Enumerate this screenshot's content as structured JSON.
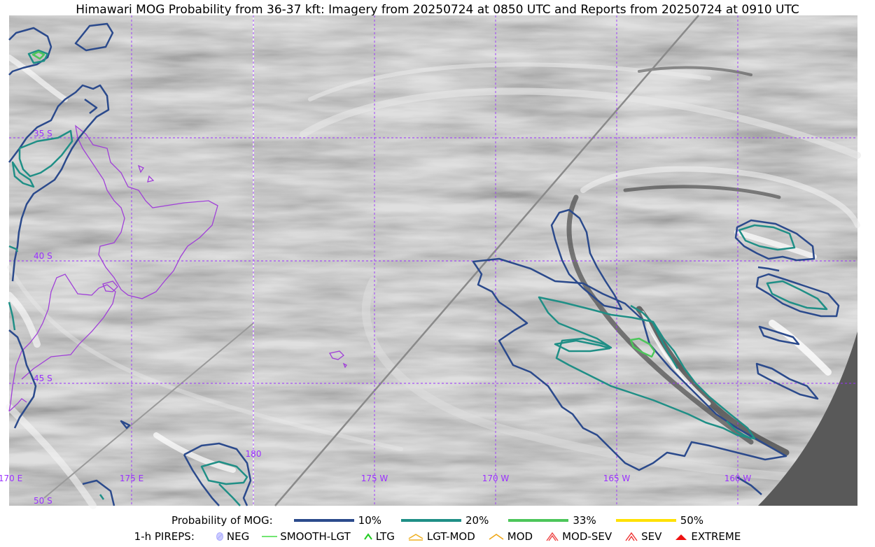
{
  "title": "Himawari MOG Probability from 36-37 kft: Imagery from 20250724 at 0850 UTC and Reports from 20250724 at 0910 UTC",
  "map": {
    "lat_labels": [
      "35 S",
      "40 S",
      "45 S",
      "50 S"
    ],
    "lon_labels": [
      "170 E",
      "175 E",
      "180",
      "175 W",
      "170 W",
      "165 W",
      "160 W"
    ],
    "colors": {
      "grid": "#9b30ff",
      "coast": "#a040d8",
      "p10": "#2b4a8c",
      "p20": "#1f8f86",
      "p33": "#4cc65a",
      "p50": "#ffe100",
      "nodata": "#595959"
    }
  },
  "legend": {
    "probability_heading": "Probability of MOG:",
    "probability_items": [
      {
        "label": "10%",
        "color": "#2b4a8c"
      },
      {
        "label": "20%",
        "color": "#1f8f86"
      },
      {
        "label": "33%",
        "color": "#4cc65a"
      },
      {
        "label": "50%",
        "color": "#ffe100"
      }
    ],
    "pirep_heading": "1-h PIREPS:",
    "pirep_items": [
      {
        "label": "NEG",
        "icon": "neg-circle-icon",
        "color": "#aaaaff"
      },
      {
        "label": "SMOOTH-LGT",
        "icon": "smooth-light-line-icon",
        "color": "#44dd44"
      },
      {
        "label": "LTG",
        "icon": "light-chevron-icon",
        "color": "#22cc22"
      },
      {
        "label": "LGT-MOD",
        "icon": "light-moderate-chevron-icon",
        "color": "#f0b020"
      },
      {
        "label": "MOD",
        "icon": "moderate-chevron-icon",
        "color": "#f0a818"
      },
      {
        "label": "MOD-SEV",
        "icon": "moderate-severe-chevron-icon",
        "color": "#ee4444"
      },
      {
        "label": "SEV",
        "icon": "severe-chevron-icon",
        "color": "#ee3333"
      },
      {
        "label": "EXTREME",
        "icon": "extreme-triangle-icon",
        "color": "#ee1111"
      }
    ]
  }
}
